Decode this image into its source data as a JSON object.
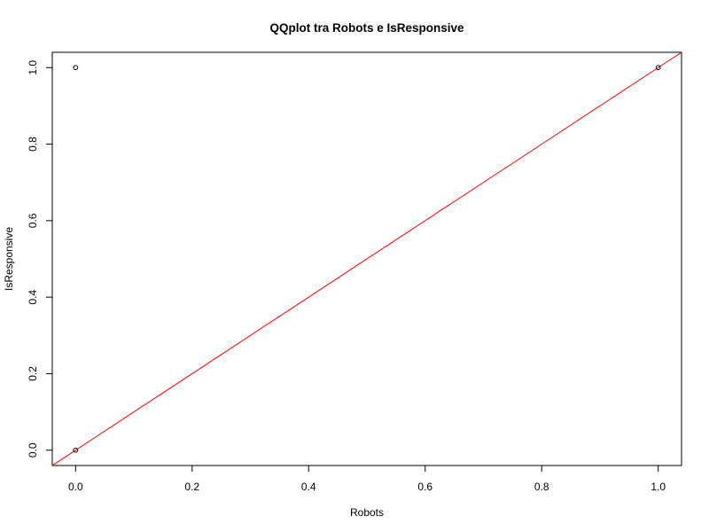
{
  "chart_data": {
    "type": "scatter",
    "title": "QQplot tra Robots e IsResponsive",
    "xlabel": "Robots",
    "ylabel": "IsResponsive",
    "xlim": [
      -0.04,
      1.04
    ],
    "ylim": [
      -0.04,
      1.04
    ],
    "x_ticks": [
      "0.0",
      "0.2",
      "0.4",
      "0.6",
      "0.8",
      "1.0"
    ],
    "y_ticks": [
      "0.0",
      "0.2",
      "0.4",
      "0.6",
      "0.8",
      "1.0"
    ],
    "points": [
      {
        "x": 0.0,
        "y": 0.0
      },
      {
        "x": 0.0,
        "y": 1.0
      },
      {
        "x": 1.0,
        "y": 1.0
      }
    ],
    "reference_line": {
      "intercept": 0,
      "slope": 1,
      "color": "#ff0000"
    },
    "point_color": "#000000",
    "grid": false,
    "legend": "none"
  }
}
